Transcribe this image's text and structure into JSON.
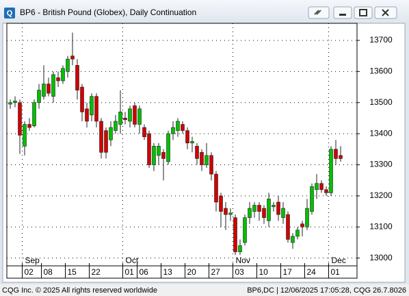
{
  "window": {
    "icon_text": "Q"
  },
  "status_bar": {
    "left": "CQG Inc. © 2025 All rights reserved worldwide",
    "right": "BP6,DC | 12/06/2025 17:05:28, CQG 26.7.8026"
  },
  "chart_data": {
    "type": "candlestick",
    "title": "BP6 - British Pound (Globex), Daily Continuation",
    "categories": [
      null,
      null,
      null,
      "02",
      null,
      null,
      null,
      "08",
      null,
      null,
      null,
      null,
      "15",
      null,
      null,
      null,
      null,
      "22",
      null,
      null,
      null,
      null,
      null,
      null,
      "01",
      null,
      null,
      "06",
      null,
      null,
      null,
      null,
      "13",
      null,
      null,
      null,
      null,
      "20",
      null,
      null,
      null,
      null,
      "27",
      null,
      null,
      null,
      null,
      "03",
      null,
      null,
      null,
      null,
      "10",
      null,
      null,
      null,
      null,
      "17",
      null,
      null,
      null,
      null,
      "24",
      null,
      null,
      null,
      null,
      "01",
      null,
      null
    ],
    "months": [
      {
        "label": "Sep",
        "at": 3
      },
      {
        "label": "Oct",
        "at": 24
      },
      {
        "label": "Nov",
        "at": 47
      },
      {
        "label": "Dec",
        "at": 67
      }
    ],
    "open": [
      13495,
      13500,
      13500,
      13360,
      13430,
      13425,
      13500,
      13520,
      13560,
      13520,
      13580,
      13570,
      13600,
      13650,
      13620,
      13550,
      13480,
      13460,
      13520,
      13440,
      13410,
      13380,
      13410,
      13430,
      13450,
      13440,
      13490,
      13430,
      13420,
      13400,
      13300,
      13330,
      13340,
      13310,
      13400,
      13410,
      13430,
      13410,
      13370,
      13360,
      13340,
      13300,
      13330,
      13270,
      13200,
      13160,
      13140,
      13130,
      13020,
      13050,
      13130,
      13150,
      13170,
      13160,
      13120,
      13165,
      13180,
      13130,
      13140,
      13050,
      13070,
      13110,
      13100,
      13150,
      13220,
      13240,
      13220,
      13210,
      13350,
      13330
    ],
    "high": [
      13510,
      13520,
      13510,
      13440,
      13450,
      13510,
      13560,
      13620,
      13580,
      13600,
      13600,
      13620,
      13650,
      13725,
      13640,
      13560,
      13500,
      13530,
      13530,
      13450,
      13420,
      13440,
      13460,
      13540,
      13470,
      13490,
      13500,
      13490,
      13430,
      13410,
      13370,
      13370,
      13350,
      13410,
      13440,
      13450,
      13440,
      13420,
      13390,
      13370,
      13350,
      13370,
      13340,
      13280,
      13210,
      13180,
      13160,
      13140,
      13060,
      13140,
      13180,
      13180,
      13180,
      13170,
      13210,
      13180,
      13200,
      13180,
      13150,
      13080,
      13100,
      13120,
      13190,
      13240,
      13270,
      13250,
      13230,
      13360,
      13380,
      13360
    ],
    "low": [
      13480,
      13485,
      13335,
      13330,
      13410,
      13420,
      13480,
      13510,
      13520,
      13500,
      13550,
      13560,
      13580,
      13620,
      13510,
      13440,
      13420,
      13440,
      13420,
      13320,
      13320,
      13360,
      13400,
      13400,
      13430,
      13420,
      13420,
      13400,
      13380,
      13290,
      13280,
      13300,
      13250,
      13300,
      13380,
      13390,
      13400,
      13350,
      13340,
      13300,
      13280,
      13290,
      13250,
      13150,
      13100,
      13090,
      13120,
      13010,
      13010,
      13040,
      13110,
      13130,
      13120,
      13110,
      13100,
      13150,
      13120,
      13110,
      13050,
      13030,
      13060,
      13070,
      13090,
      13140,
      13190,
      13210,
      13200,
      13200,
      13300,
      13310
    ],
    "close": [
      13500,
      13505,
      13395,
      13430,
      13420,
      13500,
      13540,
      13560,
      13530,
      13590,
      13570,
      13610,
      13640,
      13640,
      13540,
      13470,
      13440,
      13520,
      13440,
      13340,
      13340,
      13420,
      13440,
      13470,
      13445,
      13480,
      13430,
      13480,
      13390,
      13300,
      13360,
      13360,
      13320,
      13400,
      13420,
      13440,
      13410,
      13370,
      13375,
      13320,
      13300,
      13330,
      13270,
      13180,
      13150,
      13140,
      13145,
      13020,
      13040,
      13130,
      13160,
      13170,
      13150,
      13130,
      13190,
      13170,
      13140,
      13160,
      13060,
      13070,
      13090,
      13100,
      13160,
      13230,
      13240,
      13220,
      13210,
      13350,
      13320,
      13320
    ],
    "up_color": "#00c000",
    "down_color": "#d00000",
    "ylim": [
      12975,
      13755
    ],
    "yticks": [
      13000,
      13100,
      13200,
      13300,
      13400,
      13500,
      13600,
      13700
    ],
    "grid": true
  }
}
